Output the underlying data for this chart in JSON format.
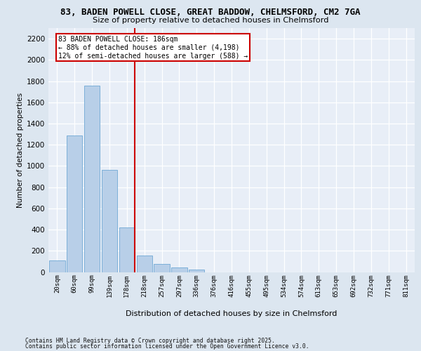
{
  "title_line1": "83, BADEN POWELL CLOSE, GREAT BADDOW, CHELMSFORD, CM2 7GA",
  "title_line2": "Size of property relative to detached houses in Chelmsford",
  "xlabel": "Distribution of detached houses by size in Chelmsford",
  "ylabel": "Number of detached properties",
  "categories": [
    "20sqm",
    "60sqm",
    "99sqm",
    "139sqm",
    "178sqm",
    "218sqm",
    "257sqm",
    "297sqm",
    "336sqm",
    "376sqm",
    "416sqm",
    "455sqm",
    "495sqm",
    "534sqm",
    "574sqm",
    "613sqm",
    "653sqm",
    "692sqm",
    "732sqm",
    "771sqm",
    "811sqm"
  ],
  "values": [
    110,
    1290,
    1760,
    960,
    420,
    155,
    75,
    45,
    25,
    0,
    0,
    0,
    0,
    0,
    0,
    0,
    0,
    0,
    0,
    0,
    0
  ],
  "bar_color": "#b8cfe8",
  "bar_edge_color": "#6fa8d4",
  "vline_position": 4.45,
  "vline_color": "#cc0000",
  "annotation_text": "83 BADEN POWELL CLOSE: 186sqm\n← 88% of detached houses are smaller (4,198)\n12% of semi-detached houses are larger (588) →",
  "annotation_box_facecolor": "white",
  "annotation_box_edgecolor": "#cc0000",
  "ylim": [
    0,
    2300
  ],
  "yticks": [
    0,
    200,
    400,
    600,
    800,
    1000,
    1200,
    1400,
    1600,
    1800,
    2000,
    2200
  ],
  "fig_bg_color": "#dce6f0",
  "plot_bg_color": "#e8eef7",
  "grid_color": "#ffffff",
  "footer_line1": "Contains HM Land Registry data © Crown copyright and database right 2025.",
  "footer_line2": "Contains public sector information licensed under the Open Government Licence v3.0."
}
